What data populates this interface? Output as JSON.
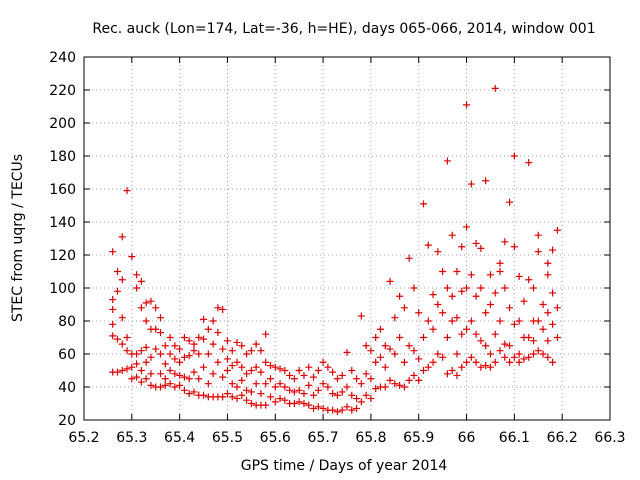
{
  "chart_data": {
    "type": "scatter",
    "title": "Rec. auck (Lon=174, Lat=-36, h=HE), days 065-066, 2014, window 001",
    "xlabel": "GPS time / Days of year 2014",
    "ylabel": "STEC from uqrg / TECUs",
    "xlim": [
      65.2,
      66.3
    ],
    "ylim": [
      20,
      240
    ],
    "xticks": [
      "65.2",
      "65.3",
      "65.4",
      "65.5",
      "65.6",
      "65.7",
      "65.8",
      "65.9",
      "66",
      "66.1",
      "66.2",
      "66.3"
    ],
    "yticks": [
      "20",
      "40",
      "60",
      "80",
      "100",
      "120",
      "140",
      "160",
      "180",
      "200",
      "220",
      "240"
    ],
    "grid": true,
    "marker": "plus",
    "color": "#dd0000",
    "points": [
      [
        65.26,
        122
      ],
      [
        65.26,
        93
      ],
      [
        65.26,
        87
      ],
      [
        65.26,
        78
      ],
      [
        65.26,
        71
      ],
      [
        65.26,
        49
      ],
      [
        65.27,
        110
      ],
      [
        65.27,
        98
      ],
      [
        65.27,
        69
      ],
      [
        65.27,
        49
      ],
      [
        65.28,
        131
      ],
      [
        65.28,
        105
      ],
      [
        65.28,
        82
      ],
      [
        65.28,
        66
      ],
      [
        65.28,
        50
      ],
      [
        65.29,
        159
      ],
      [
        65.29,
        70
      ],
      [
        65.29,
        62
      ],
      [
        65.29,
        51
      ],
      [
        65.3,
        119
      ],
      [
        65.3,
        60
      ],
      [
        65.3,
        52
      ],
      [
        65.3,
        45
      ],
      [
        65.31,
        108
      ],
      [
        65.31,
        100
      ],
      [
        65.31,
        60
      ],
      [
        65.31,
        54
      ],
      [
        65.31,
        46
      ],
      [
        65.32,
        104
      ],
      [
        65.32,
        88
      ],
      [
        65.32,
        62
      ],
      [
        65.32,
        50
      ],
      [
        65.32,
        43
      ],
      [
        65.33,
        91
      ],
      [
        65.33,
        80
      ],
      [
        65.33,
        64
      ],
      [
        65.33,
        55
      ],
      [
        65.33,
        45
      ],
      [
        65.34,
        92
      ],
      [
        65.34,
        75
      ],
      [
        65.34,
        58
      ],
      [
        65.34,
        48
      ],
      [
        65.34,
        41
      ],
      [
        65.35,
        88
      ],
      [
        65.35,
        75
      ],
      [
        65.35,
        63
      ],
      [
        65.35,
        40
      ],
      [
        65.36,
        82
      ],
      [
        65.36,
        73
      ],
      [
        65.36,
        60
      ],
      [
        65.36,
        48
      ],
      [
        65.36,
        40
      ],
      [
        65.37,
        65
      ],
      [
        65.37,
        54
      ],
      [
        65.37,
        45
      ],
      [
        65.37,
        41
      ],
      [
        65.38,
        70
      ],
      [
        65.38,
        60
      ],
      [
        65.38,
        50
      ],
      [
        65.38,
        42
      ],
      [
        65.39,
        65
      ],
      [
        65.39,
        57
      ],
      [
        65.39,
        48
      ],
      [
        65.39,
        40
      ],
      [
        65.4,
        63
      ],
      [
        65.4,
        55
      ],
      [
        65.4,
        47
      ],
      [
        65.4,
        41
      ],
      [
        65.41,
        70
      ],
      [
        65.41,
        58
      ],
      [
        65.41,
        46
      ],
      [
        65.41,
        38
      ],
      [
        65.42,
        68
      ],
      [
        65.42,
        59
      ],
      [
        65.42,
        45
      ],
      [
        65.42,
        36
      ],
      [
        65.43,
        66
      ],
      [
        65.43,
        62
      ],
      [
        65.43,
        49
      ],
      [
        65.43,
        37
      ],
      [
        65.44,
        70
      ],
      [
        65.44,
        60
      ],
      [
        65.44,
        45
      ],
      [
        65.44,
        35
      ],
      [
        65.45,
        81
      ],
      [
        65.45,
        69
      ],
      [
        65.45,
        52
      ],
      [
        65.45,
        35
      ],
      [
        65.46,
        75
      ],
      [
        65.46,
        60
      ],
      [
        65.46,
        42
      ],
      [
        65.46,
        34
      ],
      [
        65.47,
        80
      ],
      [
        65.47,
        66
      ],
      [
        65.47,
        48
      ],
      [
        65.47,
        34
      ],
      [
        65.48,
        88
      ],
      [
        65.48,
        73
      ],
      [
        65.48,
        55
      ],
      [
        65.48,
        34
      ],
      [
        65.49,
        87
      ],
      [
        65.49,
        63
      ],
      [
        65.49,
        46
      ],
      [
        65.49,
        34
      ],
      [
        65.5,
        68
      ],
      [
        65.5,
        57
      ],
      [
        65.5,
        50
      ],
      [
        65.5,
        36
      ],
      [
        65.51,
        62
      ],
      [
        65.51,
        53
      ],
      [
        65.51,
        42
      ],
      [
        65.51,
        34
      ],
      [
        65.52,
        67
      ],
      [
        65.52,
        55
      ],
      [
        65.52,
        40
      ],
      [
        65.52,
        33
      ],
      [
        65.53,
        65
      ],
      [
        65.53,
        52
      ],
      [
        65.53,
        44
      ],
      [
        65.53,
        35
      ],
      [
        65.54,
        60
      ],
      [
        65.54,
        48
      ],
      [
        65.54,
        38
      ],
      [
        65.54,
        32
      ],
      [
        65.55,
        62
      ],
      [
        65.55,
        50
      ],
      [
        65.55,
        37
      ],
      [
        65.55,
        30
      ],
      [
        65.56,
        66
      ],
      [
        65.56,
        52
      ],
      [
        65.56,
        42
      ],
      [
        65.56,
        29
      ],
      [
        65.57,
        62
      ],
      [
        65.57,
        49
      ],
      [
        65.57,
        36
      ],
      [
        65.57,
        29
      ],
      [
        65.58,
        72
      ],
      [
        65.58,
        55
      ],
      [
        65.58,
        42
      ],
      [
        65.58,
        29
      ],
      [
        65.59,
        53
      ],
      [
        65.59,
        45
      ],
      [
        65.59,
        34
      ],
      [
        65.6,
        52
      ],
      [
        65.6,
        40
      ],
      [
        65.6,
        31
      ],
      [
        65.61,
        51
      ],
      [
        65.61,
        42
      ],
      [
        65.61,
        33
      ],
      [
        65.62,
        50
      ],
      [
        65.62,
        40
      ],
      [
        65.62,
        32
      ],
      [
        65.63,
        47
      ],
      [
        65.63,
        38
      ],
      [
        65.63,
        30
      ],
      [
        65.64,
        45
      ],
      [
        65.64,
        37
      ],
      [
        65.64,
        30
      ],
      [
        65.65,
        50
      ],
      [
        65.65,
        38
      ],
      [
        65.65,
        31
      ],
      [
        65.66,
        47
      ],
      [
        65.66,
        36
      ],
      [
        65.66,
        30
      ],
      [
        65.67,
        52
      ],
      [
        65.67,
        41
      ],
      [
        65.67,
        29
      ],
      [
        65.68,
        46
      ],
      [
        65.68,
        35
      ],
      [
        65.68,
        27
      ],
      [
        65.69,
        50
      ],
      [
        65.69,
        38
      ],
      [
        65.69,
        28
      ],
      [
        65.7,
        55
      ],
      [
        65.7,
        42
      ],
      [
        65.7,
        27
      ],
      [
        65.71,
        52
      ],
      [
        65.71,
        40
      ],
      [
        65.71,
        26
      ],
      [
        65.72,
        49
      ],
      [
        65.72,
        36
      ],
      [
        65.72,
        26
      ],
      [
        65.73,
        45
      ],
      [
        65.73,
        35
      ],
      [
        65.73,
        25
      ],
      [
        65.74,
        47
      ],
      [
        65.74,
        37
      ],
      [
        65.74,
        26
      ],
      [
        65.75,
        61
      ],
      [
        65.75,
        40
      ],
      [
        65.75,
        28
      ],
      [
        65.76,
        50
      ],
      [
        65.76,
        35
      ],
      [
        65.76,
        26
      ],
      [
        65.77,
        45
      ],
      [
        65.77,
        33
      ],
      [
        65.77,
        27
      ],
      [
        65.78,
        83
      ],
      [
        65.78,
        42
      ],
      [
        65.78,
        31
      ],
      [
        65.79,
        65
      ],
      [
        65.79,
        48
      ],
      [
        65.79,
        35
      ],
      [
        65.8,
        62
      ],
      [
        65.8,
        45
      ],
      [
        65.8,
        33
      ],
      [
        65.81,
        70
      ],
      [
        65.81,
        55
      ],
      [
        65.81,
        39
      ],
      [
        65.82,
        75
      ],
      [
        65.82,
        58
      ],
      [
        65.82,
        40
      ],
      [
        65.83,
        65
      ],
      [
        65.83,
        52
      ],
      [
        65.83,
        40
      ],
      [
        65.84,
        104
      ],
      [
        65.84,
        63
      ],
      [
        65.84,
        44
      ],
      [
        65.85,
        82
      ],
      [
        65.85,
        60
      ],
      [
        65.85,
        42
      ],
      [
        65.86,
        95
      ],
      [
        65.86,
        70
      ],
      [
        65.86,
        41
      ],
      [
        65.87,
        88
      ],
      [
        65.87,
        55
      ],
      [
        65.87,
        40
      ],
      [
        65.88,
        118
      ],
      [
        65.88,
        65
      ],
      [
        65.88,
        44
      ],
      [
        65.89,
        100
      ],
      [
        65.89,
        62
      ],
      [
        65.89,
        47
      ],
      [
        65.9,
        85
      ],
      [
        65.9,
        57
      ],
      [
        65.9,
        44
      ],
      [
        65.91,
        151
      ],
      [
        65.91,
        70
      ],
      [
        65.91,
        50
      ],
      [
        65.92,
        126
      ],
      [
        65.92,
        80
      ],
      [
        65.92,
        52
      ],
      [
        65.93,
        96
      ],
      [
        65.93,
        75
      ],
      [
        65.93,
        55
      ],
      [
        65.94,
        122
      ],
      [
        65.94,
        90
      ],
      [
        65.94,
        60
      ],
      [
        65.95,
        110
      ],
      [
        65.95,
        85
      ],
      [
        65.95,
        58
      ],
      [
        65.96,
        177
      ],
      [
        65.96,
        100
      ],
      [
        65.96,
        70
      ],
      [
        65.96,
        48
      ],
      [
        65.97,
        132
      ],
      [
        65.97,
        95
      ],
      [
        65.97,
        80
      ],
      [
        65.97,
        50
      ],
      [
        65.98,
        110
      ],
      [
        65.98,
        82
      ],
      [
        65.98,
        60
      ],
      [
        65.98,
        47
      ],
      [
        65.99,
        125
      ],
      [
        65.99,
        98
      ],
      [
        65.99,
        72
      ],
      [
        65.99,
        52
      ],
      [
        66.0,
        211
      ],
      [
        66.0,
        137
      ],
      [
        66.0,
        100
      ],
      [
        66.0,
        75
      ],
      [
        66.0,
        55
      ],
      [
        66.01,
        163
      ],
      [
        66.01,
        108
      ],
      [
        66.01,
        80
      ],
      [
        66.01,
        58
      ],
      [
        66.02,
        127
      ],
      [
        66.02,
        95
      ],
      [
        66.02,
        72
      ],
      [
        66.02,
        55
      ],
      [
        66.03,
        124
      ],
      [
        66.03,
        100
      ],
      [
        66.03,
        68
      ],
      [
        66.03,
        52
      ],
      [
        66.04,
        165
      ],
      [
        66.04,
        85
      ],
      [
        66.04,
        65
      ],
      [
        66.04,
        53
      ],
      [
        66.05,
        108
      ],
      [
        66.05,
        90
      ],
      [
        66.05,
        60
      ],
      [
        66.05,
        52
      ],
      [
        66.06,
        221
      ],
      [
        66.06,
        97
      ],
      [
        66.06,
        72
      ],
      [
        66.06,
        55
      ],
      [
        66.07,
        115
      ],
      [
        66.07,
        110
      ],
      [
        66.07,
        80
      ],
      [
        66.07,
        62
      ],
      [
        66.08,
        128
      ],
      [
        66.08,
        100
      ],
      [
        66.08,
        66
      ],
      [
        66.08,
        58
      ],
      [
        66.09,
        152
      ],
      [
        66.09,
        88
      ],
      [
        66.09,
        65
      ],
      [
        66.09,
        55
      ],
      [
        66.1,
        180
      ],
      [
        66.1,
        125
      ],
      [
        66.1,
        78
      ],
      [
        66.1,
        58
      ],
      [
        66.11,
        107
      ],
      [
        66.11,
        80
      ],
      [
        66.11,
        60
      ],
      [
        66.11,
        55
      ],
      [
        66.12,
        92
      ],
      [
        66.12,
        70
      ],
      [
        66.12,
        57
      ],
      [
        66.13,
        176
      ],
      [
        66.13,
        105
      ],
      [
        66.13,
        70
      ],
      [
        66.13,
        58
      ],
      [
        66.14,
        100
      ],
      [
        66.14,
        80
      ],
      [
        66.14,
        68
      ],
      [
        66.14,
        60
      ],
      [
        66.15,
        132
      ],
      [
        66.15,
        122
      ],
      [
        66.15,
        80
      ],
      [
        66.15,
        62
      ],
      [
        66.16,
        90
      ],
      [
        66.16,
        75
      ],
      [
        66.16,
        60
      ],
      [
        66.17,
        115
      ],
      [
        66.17,
        108
      ],
      [
        66.17,
        85
      ],
      [
        66.17,
        68
      ],
      [
        66.17,
        58
      ],
      [
        66.18,
        123
      ],
      [
        66.18,
        97
      ],
      [
        66.18,
        78
      ],
      [
        66.18,
        55
      ],
      [
        66.19,
        135
      ],
      [
        66.19,
        88
      ],
      [
        66.19,
        70
      ]
    ]
  }
}
